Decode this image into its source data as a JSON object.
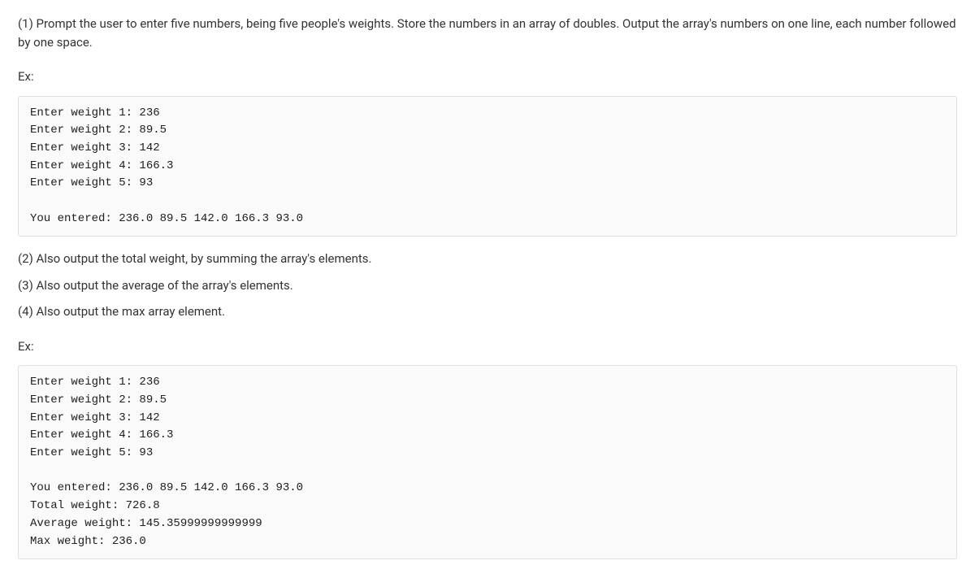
{
  "intro": "(1) Prompt the user to enter five numbers, being five people's weights. Store the numbers in an array of doubles. Output the array's numbers on one line, each number followed by one space.",
  "ex_label": "Ex:",
  "code1": "Enter weight 1: 236\nEnter weight 2: 89.5\nEnter weight 3: 142\nEnter weight 4: 166.3\nEnter weight 5: 93\n\nYou entered: 236.0 89.5 142.0 166.3 93.0",
  "step2": "(2) Also output the total weight, by summing the array's elements.",
  "step3": "(3) Also output the average of the array's elements.",
  "step4": "(4) Also output the max array element.",
  "code2": "Enter weight 1: 236\nEnter weight 2: 89.5\nEnter weight 3: 142\nEnter weight 4: 166.3\nEnter weight 5: 93\n\nYou entered: 236.0 89.5 142.0 166.3 93.0\nTotal weight: 726.8\nAverage weight: 145.35999999999999\nMax weight: 236.0"
}
